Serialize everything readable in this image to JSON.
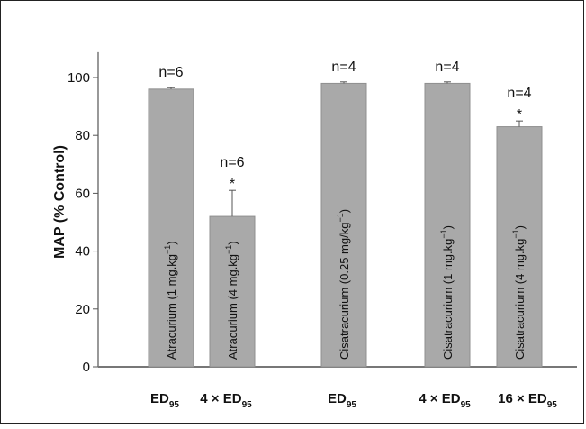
{
  "chart_data": {
    "type": "bar",
    "ylabel": "MAP (% Control)",
    "ylim": [
      0,
      110
    ],
    "yticks": [
      0,
      20,
      40,
      60,
      80,
      100
    ],
    "categories": [
      {
        "base": "ED",
        "sub": "95",
        "prefix": ""
      },
      {
        "base": "ED",
        "sub": "95",
        "prefix": "4 × "
      },
      {
        "base": "ED",
        "sub": "95",
        "prefix": ""
      },
      {
        "base": "ED",
        "sub": "95",
        "prefix": "4 × "
      },
      {
        "base": "ED",
        "sub": "95",
        "prefix": "16 × "
      }
    ],
    "bars": [
      {
        "value": 96,
        "error": 0.5,
        "n": "n=6",
        "significant": false,
        "label_main": "Atracurium (1 mg.kg",
        "label_sup": "−1",
        "label_end": ")"
      },
      {
        "value": 52,
        "error": 9,
        "n": "n=6",
        "significant": true,
        "label_main": "Atracurium (4 mg.kg",
        "label_sup": "−1",
        "label_end": ")"
      },
      {
        "value": 98,
        "error": 0.5,
        "n": "n=4",
        "significant": false,
        "label_main": "Cisatracurium (0.25 mg/kg",
        "label_sup": "−1",
        "label_end": ")"
      },
      {
        "value": 98,
        "error": 0.5,
        "n": "n=4",
        "significant": false,
        "label_main": "Cisatracurium (1 mg.kg",
        "label_sup": "−1",
        "label_end": ")"
      },
      {
        "value": 83,
        "error": 2,
        "n": "n=4",
        "significant": true,
        "label_main": "Cisatracurium (4 mg.kg",
        "label_sup": "−1",
        "label_end": ")"
      }
    ],
    "significance_marker": "*",
    "bar_color": "#a9a9a9"
  }
}
